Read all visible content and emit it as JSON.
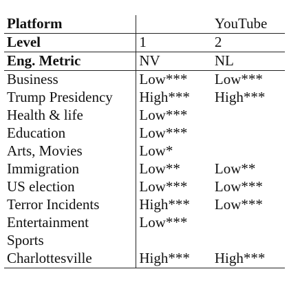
{
  "table": {
    "header_rows": [
      {
        "label": "Platform",
        "col1": "",
        "col2": "YouTube"
      },
      {
        "label": "Level",
        "col1": "1",
        "col2": "2"
      },
      {
        "label": "Eng. Metric",
        "col1": "NV",
        "col2": "NL"
      }
    ],
    "rows": [
      {
        "topic": "Business",
        "nv": "Low***",
        "nl": "Low***"
      },
      {
        "topic": "Trump Presidency",
        "nv": "High***",
        "nl": "High***"
      },
      {
        "topic": "Health & life",
        "nv": "Low***",
        "nl": ""
      },
      {
        "topic": "Education",
        "nv": "Low***",
        "nl": ""
      },
      {
        "topic": "Arts, Movies",
        "nv": "Low*",
        "nl": ""
      },
      {
        "topic": "Immigration",
        "nv": "Low**",
        "nl": "Low**"
      },
      {
        "topic": "US election",
        "nv": "Low***",
        "nl": "Low***"
      },
      {
        "topic": "Terror Incidents",
        "nv": "High***",
        "nl": "Low***"
      },
      {
        "topic": "Entertainment",
        "nv": "Low***",
        "nl": ""
      },
      {
        "topic": "Sports",
        "nv": "",
        "nl": ""
      },
      {
        "topic": "Charlottesville",
        "nv": "High***",
        "nl": "High***"
      }
    ]
  }
}
